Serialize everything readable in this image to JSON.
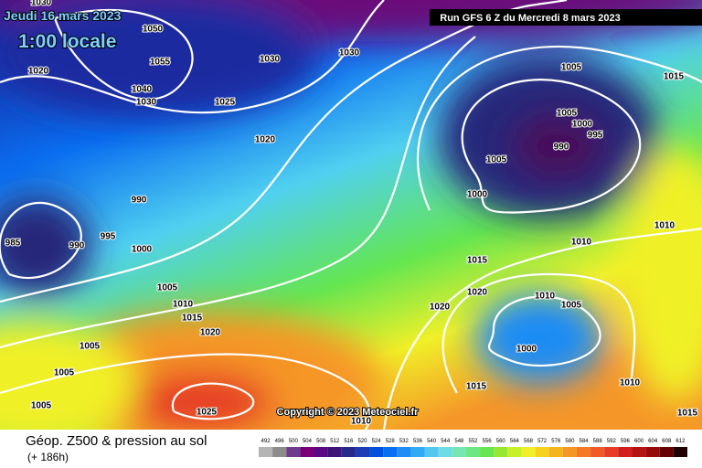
{
  "header": {
    "date": "Jeudi 16 mars 2023",
    "time": "1:00 locale",
    "run": "Run GFS 6 Z du Mercredi 8 mars 2023"
  },
  "copyright": "Copyright © 2023 Meteociel.fr",
  "footer": {
    "title": "Géop. Z500 & pression au sol",
    "lead": "(+ 186h)"
  },
  "isobar_labels": [
    1030,
    1050,
    1055,
    1040,
    1030,
    1025,
    1030,
    1030,
    1020,
    1020,
    990,
    985,
    990,
    995,
    1000,
    1005,
    1010,
    1015,
    1020,
    1005,
    1005,
    1005,
    1025,
    1005,
    1015,
    1005,
    1000,
    995,
    990,
    1005,
    1000,
    1010,
    1010,
    1015,
    1020,
    1020,
    1010,
    1005,
    1000,
    1015,
    1010,
    1015,
    1010
  ],
  "legend": {
    "levels": [
      492,
      496,
      500,
      504,
      508,
      512,
      516,
      520,
      524,
      528,
      532,
      536,
      540,
      544,
      548,
      552,
      556,
      560,
      564,
      568,
      572,
      576,
      580,
      584,
      588,
      592,
      596,
      600,
      604,
      608,
      612
    ],
    "colors": [
      "#b4b4b4",
      "#8c8c8c",
      "#6e3c8c",
      "#7a0078",
      "#5a0a82",
      "#3c1478",
      "#28288c",
      "#1e3cb4",
      "#0050dc",
      "#0a6ef0",
      "#1e8cf5",
      "#32aaf5",
      "#50c8f0",
      "#6edce6",
      "#78e6b4",
      "#6ee682",
      "#64e650",
      "#96e632",
      "#c8f028",
      "#f0f028",
      "#f5d21e",
      "#f5b41e",
      "#f59628",
      "#f57828",
      "#f05a28",
      "#e63c28",
      "#d21e1e",
      "#b41414",
      "#960a0a",
      "#640000",
      "#1e0000"
    ]
  }
}
